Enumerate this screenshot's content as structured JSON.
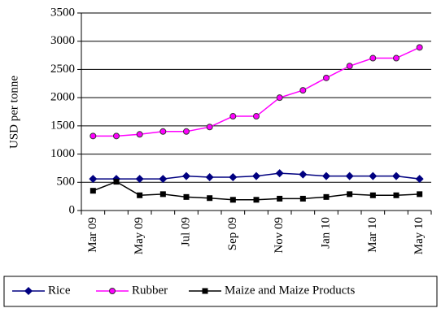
{
  "chart_data": {
    "type": "line",
    "y_label": "USD per tonne",
    "categories": [
      "Mar 09",
      null,
      "May 09",
      null,
      "Jul 09",
      null,
      "Sep 09",
      null,
      "Nov 09",
      null,
      "Jan 10",
      null,
      "Mar 10",
      null,
      "May 10"
    ],
    "series": [
      {
        "name": "Rice",
        "color": "#000080",
        "marker": "diamond",
        "values": [
          560,
          560,
          560,
          560,
          610,
          590,
          590,
          610,
          660,
          640,
          610,
          610,
          610,
          610,
          560
        ]
      },
      {
        "name": "Rubber",
        "color": "#ff00ff",
        "marker": "circle",
        "values": [
          1320,
          1320,
          1350,
          1400,
          1400,
          1480,
          1670,
          1670,
          2000,
          2130,
          2350,
          2560,
          2700,
          2700,
          2890
        ]
      },
      {
        "name": "Maize and Maize Products",
        "color": "#000000",
        "marker": "square",
        "values": [
          350,
          510,
          270,
          290,
          240,
          220,
          190,
          190,
          210,
          210,
          240,
          290,
          270,
          270,
          290
        ]
      }
    ],
    "ylim": [
      0,
      3500
    ],
    "yticks": [
      0,
      500,
      1000,
      1500,
      2000,
      2500,
      3000,
      3500
    ],
    "grid": true,
    "legend": "bottom"
  }
}
